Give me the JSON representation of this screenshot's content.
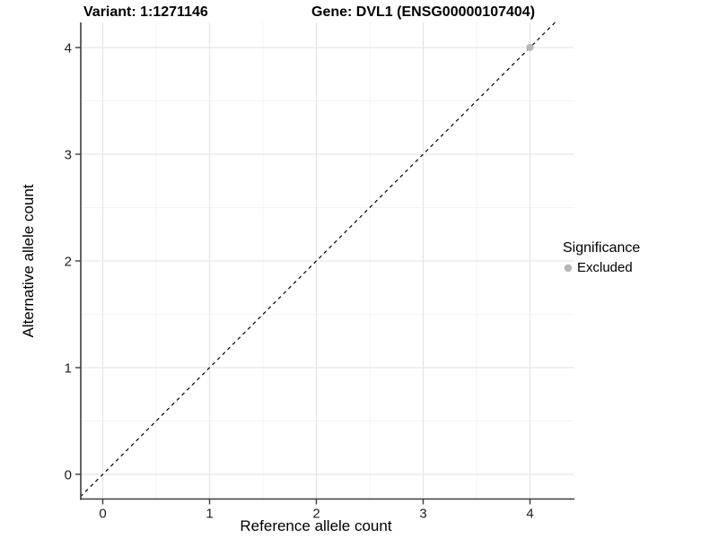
{
  "chart_data": {
    "type": "scatter",
    "title_left": "Variant: 1:1271146",
    "title_right": "Gene: DVL1 (ENSG00000107404)",
    "xlabel": "Reference allele count",
    "ylabel": "Alternative allele count",
    "xlim": [
      -0.21,
      4.42
    ],
    "ylim": [
      -0.23,
      4.24
    ],
    "x_ticks": [
      0,
      1,
      2,
      3,
      4
    ],
    "y_ticks": [
      0,
      1,
      2,
      3,
      4
    ],
    "x_minor_ticks": [
      0.5,
      1.5,
      2.5,
      3.5
    ],
    "y_minor_ticks": [
      0.5,
      1.5,
      2.5,
      3.5
    ],
    "grid": "major and minor, light gray on white panel",
    "points": [
      {
        "x": 4,
        "y": 4,
        "significance": "Excluded"
      }
    ],
    "reference_line": {
      "slope": 1,
      "intercept": 0,
      "style": "dashed",
      "color": "#000000"
    },
    "legend": {
      "title": "Significance",
      "position": "right",
      "items": [
        {
          "label": "Excluded",
          "color": "#b7b7b7"
        }
      ]
    },
    "colors": {
      "panel_background": "#ffffff",
      "grid_major": "#e6e6e6",
      "grid_minor": "#f3f3f3",
      "axis_line": "#3d3d3d",
      "tick_mark": "#3d3d3d",
      "point": "#b7b7b7"
    }
  }
}
